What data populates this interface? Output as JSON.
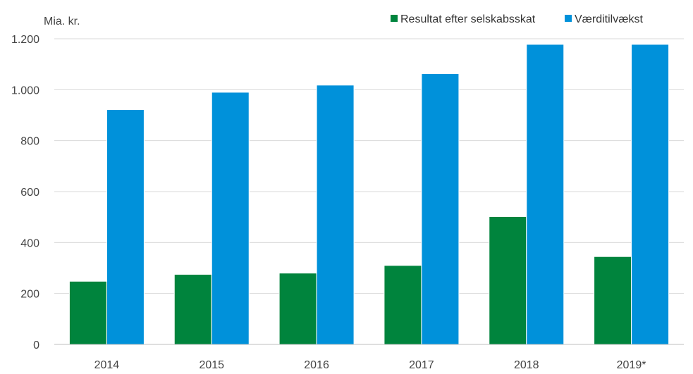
{
  "chart_data": {
    "type": "bar",
    "ylabel": "Mia. kr.",
    "categories": [
      "2014",
      "2015",
      "2016",
      "2017",
      "2018",
      "2019*"
    ],
    "series": [
      {
        "name": "Resultat efter selskabsskat",
        "color": "#00843d",
        "values": [
          248,
          275,
          280,
          310,
          502,
          345
        ]
      },
      {
        "name": "Værditilvækst",
        "color": "#0091da",
        "values": [
          922,
          990,
          1018,
          1063,
          1178,
          1178
        ]
      }
    ],
    "ylim": [
      0,
      1200
    ],
    "yticks": [
      0,
      200,
      400,
      600,
      800,
      1000,
      1200
    ],
    "ytick_labels": [
      "0",
      "200",
      "400",
      "600",
      "800",
      "1.000",
      "1.200"
    ],
    "grid": true,
    "legend_position": "top-right"
  }
}
